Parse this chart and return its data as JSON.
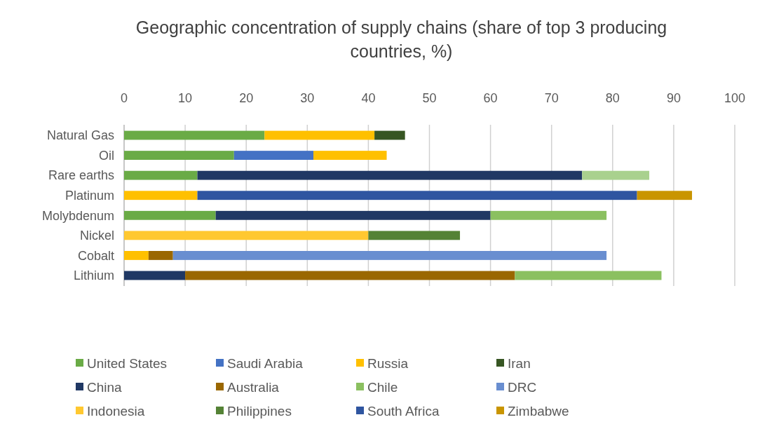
{
  "chart_data": {
    "type": "bar",
    "orientation": "horizontal",
    "stacked": true,
    "title": "Geographic concentration of supply chains (share of top 3 producing countries, %)",
    "categories": [
      "Natural Gas",
      "Oil",
      "Rare earths",
      "Platinum",
      "Molybdenum",
      "Nickel",
      "Cobalt",
      "Lithium"
    ],
    "xlim": [
      0,
      100
    ],
    "xticks": [
      0,
      10,
      20,
      30,
      40,
      50,
      60,
      70,
      80,
      90,
      100
    ],
    "grid": "x",
    "legend": "bottom",
    "series": [
      {
        "name": "United States",
        "color": "#6aab46",
        "values": [
          23,
          18,
          12,
          null,
          15,
          null,
          null,
          null
        ]
      },
      {
        "name": "Saudi Arabia",
        "color": "#4472c4",
        "values": [
          null,
          13,
          null,
          null,
          null,
          null,
          null,
          null
        ]
      },
      {
        "name": "Russia",
        "color": "#ffc000",
        "values": [
          18,
          12,
          null,
          12,
          null,
          null,
          4,
          null
        ]
      },
      {
        "name": "Iran",
        "color": "#375623",
        "values": [
          5,
          null,
          null,
          null,
          null,
          null,
          null,
          null
        ]
      },
      {
        "name": "China",
        "color": "#203864",
        "values": [
          null,
          null,
          63,
          null,
          45,
          null,
          null,
          10
        ]
      },
      {
        "name": "Australia",
        "color": "#9a6700",
        "values": [
          null,
          null,
          null,
          null,
          null,
          null,
          4,
          54
        ]
      },
      {
        "name": "Chile",
        "color": "#8bc060",
        "values": [
          null,
          null,
          null,
          null,
          19,
          null,
          null,
          24
        ]
      },
      {
        "name": "DRC",
        "color": "#698ed0",
        "values": [
          null,
          null,
          null,
          null,
          null,
          null,
          71,
          null
        ]
      },
      {
        "name": "Indonesia",
        "color": "#ffc830",
        "values": [
          null,
          null,
          null,
          null,
          null,
          40,
          null,
          null
        ]
      },
      {
        "name": "Philippines",
        "color": "#548235",
        "values": [
          null,
          null,
          null,
          null,
          null,
          15,
          null,
          null
        ]
      },
      {
        "name": "South Africa",
        "color": "#2f55a0",
        "values": [
          null,
          null,
          null,
          72,
          null,
          null,
          null,
          null
        ]
      },
      {
        "name": "Zimbabwe",
        "color": "#c99500",
        "values": [
          null,
          null,
          null,
          9,
          null,
          null,
          null,
          null
        ]
      },
      {
        "color": "#a9d18e",
        "values": [
          null,
          null,
          11,
          null,
          null,
          null,
          null,
          null
        ]
      }
    ]
  }
}
